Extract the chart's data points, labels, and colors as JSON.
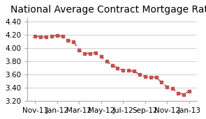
{
  "title": "National Average Contract Mortgage Rate",
  "x_labels": [
    "Nov-11",
    "Jan-12",
    "Mar-12",
    "May-12",
    "Jul-12",
    "Sep-12",
    "Nov-12",
    "Jan-13"
  ],
  "x_values": [
    0,
    2,
    4,
    6,
    8,
    10,
    12,
    14
  ],
  "y_data": [
    [
      0,
      4.18
    ],
    [
      0.5,
      4.17
    ],
    [
      1,
      4.17
    ],
    [
      1.5,
      4.18
    ],
    [
      2,
      4.19
    ],
    [
      2.5,
      4.18
    ],
    [
      3,
      4.12
    ],
    [
      3.5,
      4.1
    ],
    [
      4,
      3.97
    ],
    [
      4.5,
      3.92
    ],
    [
      5,
      3.92
    ],
    [
      5.5,
      3.93
    ],
    [
      6,
      3.87
    ],
    [
      6.5,
      3.8
    ],
    [
      7,
      3.74
    ],
    [
      7.5,
      3.7
    ],
    [
      8,
      3.66
    ],
    [
      8.5,
      3.66
    ],
    [
      9,
      3.65
    ],
    [
      9.5,
      3.6
    ],
    [
      10,
      3.57
    ],
    [
      10.5,
      3.56
    ],
    [
      11,
      3.56
    ],
    [
      11.5,
      3.48
    ],
    [
      12,
      3.41
    ],
    [
      12.5,
      3.39
    ],
    [
      13,
      3.32
    ],
    [
      13.5,
      3.3
    ],
    [
      14,
      3.35
    ]
  ],
  "line_color": "#c0504d",
  "ylim": [
    3.2,
    4.45
  ],
  "yticks": [
    3.2,
    3.4,
    3.6,
    3.8,
    4.0,
    4.2,
    4.4
  ],
  "background_color": "#ffffff",
  "grid_color": "#d0d0d0",
  "title_fontsize": 10,
  "tick_fontsize": 7.5
}
